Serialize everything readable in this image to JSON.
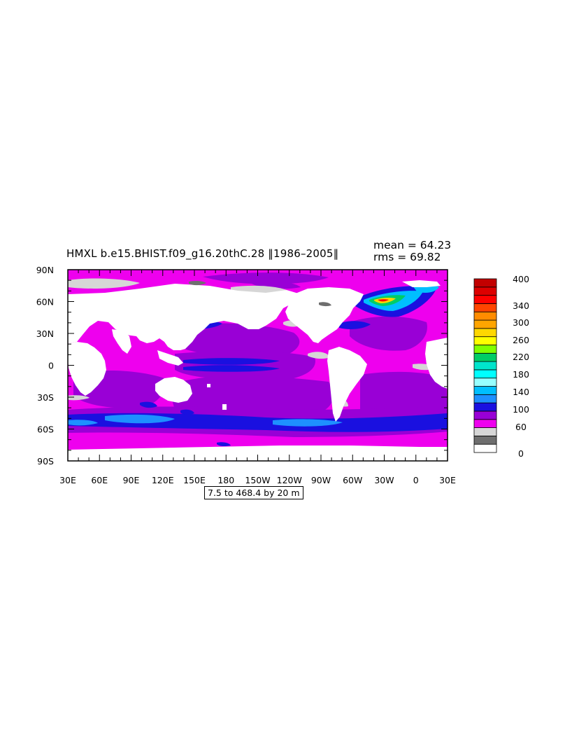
{
  "figure": {
    "title": "HMXL b.e15.BHIST.f09_g16.20thC.28 ‖1986–2005‖",
    "stats": {
      "mean": "mean = 64.23",
      "rms": "rms = 69.82"
    },
    "contour_range": "7.5 to 468.4 by 20 m"
  },
  "map": {
    "variable": "HMXL",
    "lon_labels": [
      "30E",
      "60E",
      "90E",
      "120E",
      "150E",
      "180",
      "150W",
      "120W",
      "90W",
      "60W",
      "30W",
      "0",
      "30E"
    ],
    "lat_labels": [
      "90N",
      "60N",
      "30N",
      "0",
      "30S",
      "60S",
      "90S"
    ],
    "colors": {
      "magenta": "#ee00ee",
      "violet": "#9900d6",
      "blue": "#1a10e0",
      "light_blue": "#1e90ff",
      "cyan_blue": "#00bfff",
      "land": "#ffffff",
      "sea_ice": "#d6d6d6",
      "dark_gray": "#6e6e6e"
    }
  },
  "colorbar": {
    "labels": [
      "400",
      "340",
      "300",
      "260",
      "220",
      "180",
      "140",
      "100",
      "60",
      "0"
    ],
    "colors": [
      "#ffffff",
      "#6e6e6e",
      "#d6d6d6",
      "#ee00ee",
      "#9900d6",
      "#1a10e0",
      "#1e90ff",
      "#00bfff",
      "#97ffff",
      "#00ffff",
      "#00e5cc",
      "#00cd66",
      "#7fff00",
      "#ffff00",
      "#ffd700",
      "#ffa500",
      "#ff8c00",
      "#ff4500",
      "#ff0000",
      "#dd0000",
      "#c20000"
    ]
  }
}
